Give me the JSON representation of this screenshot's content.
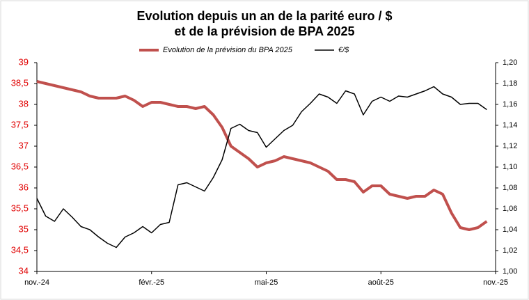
{
  "chart_data": {
    "type": "line",
    "title": [
      "Evolution depuis un an de la parité euro / $",
      "et de la prévision de BPA 2025"
    ],
    "categories": [
      "nov.-24",
      null,
      null,
      null,
      null,
      null,
      null,
      null,
      null,
      null,
      null,
      null,
      null,
      "févr.-25",
      null,
      null,
      null,
      null,
      null,
      null,
      null,
      null,
      null,
      null,
      null,
      null,
      "mai-25",
      null,
      null,
      null,
      null,
      null,
      null,
      null,
      null,
      null,
      null,
      null,
      null,
      "août-25",
      null,
      null,
      null,
      null,
      null,
      null,
      null,
      null,
      null,
      null,
      null,
      null,
      "nov.-25"
    ],
    "series": [
      {
        "name": "Evolution de la prévision du BPA 2025",
        "color": "#c0504d",
        "axis": "y",
        "values": [
          38.55,
          38.5,
          38.45,
          38.4,
          38.35,
          38.3,
          38.2,
          38.15,
          38.15,
          38.15,
          38.2,
          38.1,
          37.95,
          38.05,
          38.05,
          38.0,
          37.95,
          37.95,
          37.9,
          37.95,
          37.75,
          37.45,
          37.0,
          36.85,
          36.7,
          36.5,
          36.6,
          36.65,
          36.75,
          36.7,
          36.65,
          36.6,
          36.5,
          36.4,
          36.2,
          36.2,
          36.15,
          35.9,
          36.05,
          36.05,
          35.85,
          35.8,
          35.75,
          35.8,
          35.8,
          35.95,
          35.85,
          35.4,
          35.05,
          35.0,
          35.05,
          35.2,
          null
        ]
      },
      {
        "name": "€/$",
        "color": "#000000",
        "axis": "y2",
        "values": [
          1.07,
          1.053,
          1.048,
          1.06,
          1.052,
          1.043,
          1.04,
          1.033,
          1.027,
          1.023,
          1.033,
          1.037,
          1.043,
          1.037,
          1.045,
          1.047,
          1.083,
          1.085,
          1.081,
          1.077,
          1.09,
          1.107,
          1.137,
          1.141,
          1.135,
          1.133,
          1.119,
          1.127,
          1.135,
          1.14,
          1.153,
          1.161,
          1.17,
          1.167,
          1.161,
          1.173,
          1.17,
          1.15,
          1.163,
          1.167,
          1.163,
          1.168,
          1.167,
          1.17,
          1.173,
          1.177,
          1.17,
          1.167,
          1.16,
          1.161,
          1.161,
          1.155,
          null
        ]
      }
    ],
    "ylim": [
      34,
      39
    ],
    "yticks": [
      34,
      {
        "value": 34.5,
        "label": "34,5"
      },
      35,
      {
        "value": 35.5,
        "label": "35,5"
      },
      36,
      {
        "value": 36.5,
        "label": "36,5"
      },
      37,
      {
        "value": 37.5,
        "label": "37,5"
      },
      38,
      {
        "value": 38.5,
        "label": "38,5"
      },
      39
    ],
    "ytick_color": "#e00000",
    "y2lim": [
      1.0,
      1.2
    ],
    "y2ticks": [
      {
        "value": 1.0,
        "label": "1,00"
      },
      {
        "value": 1.02,
        "label": "1,02"
      },
      {
        "value": 1.04,
        "label": "1,04"
      },
      {
        "value": 1.06,
        "label": "1,06"
      },
      {
        "value": 1.08,
        "label": "1,08"
      },
      {
        "value": 1.1,
        "label": "1,10"
      },
      {
        "value": 1.12,
        "label": "1,12"
      },
      {
        "value": 1.14,
        "label": "1,14"
      },
      {
        "value": 1.16,
        "label": "1,16"
      },
      {
        "value": 1.18,
        "label": "1,18"
      },
      {
        "value": 1.2,
        "label": "1,20"
      }
    ],
    "grid": false,
    "legend": "top"
  }
}
